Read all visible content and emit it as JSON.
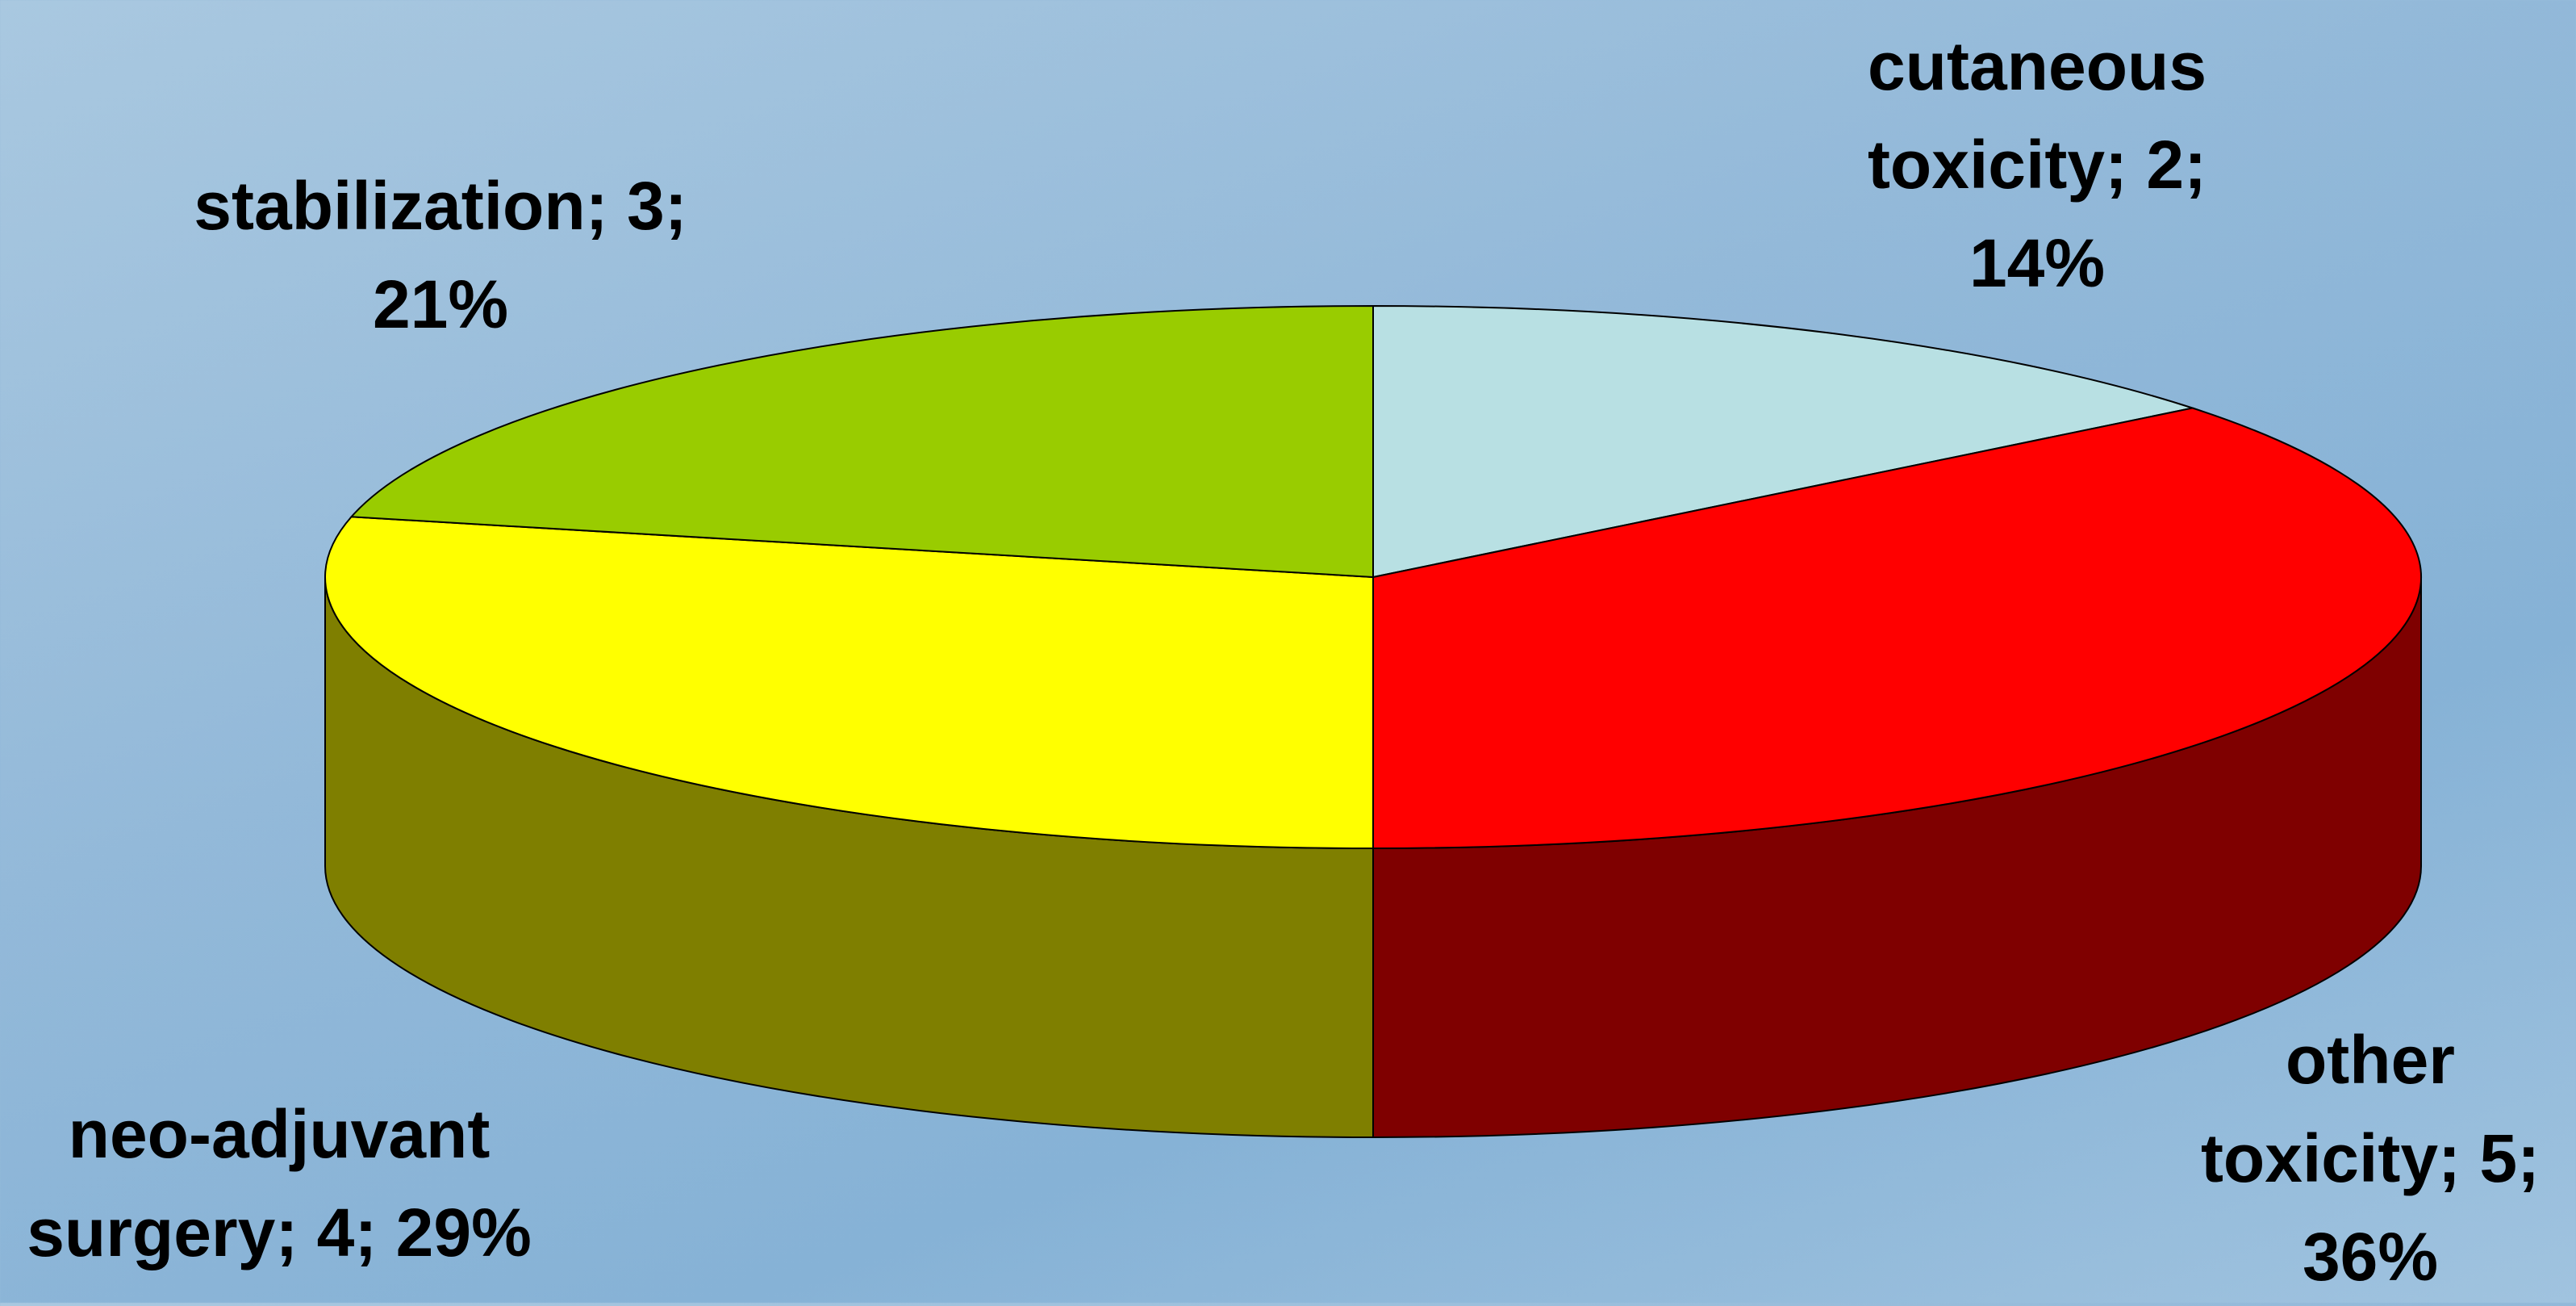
{
  "chart_data": {
    "type": "pie",
    "values": [
      2,
      5,
      4,
      3
    ],
    "value_labels": [
      "cutaneous toxicity; 2; 14%",
      "other toxicity; 5; 36%",
      "neo-adjuvant surgery; 4; 29%",
      "stabilization; 3; 21%"
    ],
    "colors": [
      "#b8e0e3",
      "#ff0000",
      "#ffff00",
      "#99cc00"
    ]
  }
}
